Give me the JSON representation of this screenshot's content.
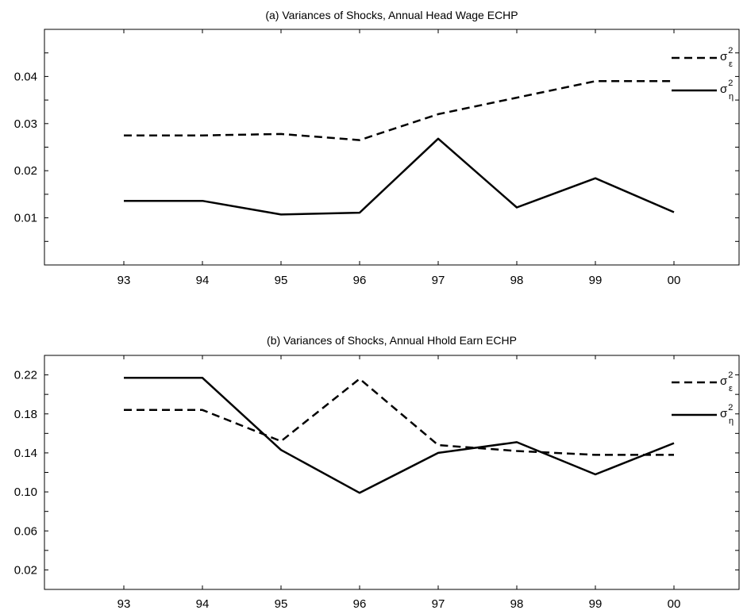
{
  "chart_data": [
    {
      "type": "line",
      "title": "(a) Variances of Shocks, Annual Head Wage ECHP",
      "xlabel": "",
      "ylabel": "",
      "categories": [
        "93",
        "94",
        "95",
        "96",
        "97",
        "98",
        "99",
        "00"
      ],
      "ylim": [
        0.0,
        0.05
      ],
      "yticks": [
        "0.01",
        "0.02",
        "0.03",
        "0.04"
      ],
      "grid": false,
      "legend": "top-right",
      "series": [
        {
          "name": "σ_ε^2",
          "sym": "σ",
          "sub": "ε",
          "sup": "2",
          "style": "dashed",
          "values": [
            0.0275,
            0.0275,
            0.0278,
            0.0265,
            0.032,
            0.0355,
            0.039,
            0.039
          ]
        },
        {
          "name": "σ_η^2",
          "sym": "σ",
          "sub": "η",
          "sup": "2",
          "style": "solid",
          "values": [
            0.0136,
            0.0136,
            0.0107,
            0.0111,
            0.0268,
            0.0122,
            0.0184,
            0.0112
          ]
        }
      ]
    },
    {
      "type": "line",
      "title": "(b) Variances of Shocks, Annual Hhold Earn ECHP",
      "xlabel": "",
      "ylabel": "",
      "categories": [
        "93",
        "94",
        "95",
        "96",
        "97",
        "98",
        "99",
        "00"
      ],
      "ylim": [
        0.0,
        0.24
      ],
      "yticks": [
        "0.02",
        "0.06",
        "0.10",
        "0.14",
        "0.18",
        "0.22"
      ],
      "grid": false,
      "legend": "top-right",
      "series": [
        {
          "name": "σ_ε^2",
          "sym": "σ",
          "sub": "ε",
          "sup": "2",
          "style": "dashed",
          "values": [
            0.184,
            0.184,
            0.152,
            0.216,
            0.148,
            0.142,
            0.138,
            0.138
          ]
        },
        {
          "name": "σ_η^2",
          "sym": "σ",
          "sub": "η",
          "sup": "2",
          "style": "solid",
          "values": [
            0.217,
            0.217,
            0.143,
            0.099,
            0.14,
            0.151,
            0.118,
            0.15
          ]
        }
      ]
    }
  ]
}
